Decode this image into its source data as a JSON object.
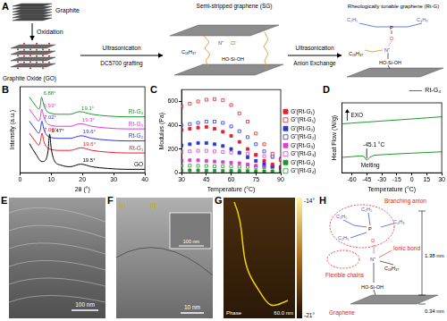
{
  "panel_A": {
    "label": "A",
    "graphite": "Graphite",
    "oxidation": "Oxidation",
    "go": "Graphite Oxide (GO)",
    "step2": [
      "Ultrasonication",
      "DC5700 grafting"
    ],
    "sg": "Semi-stripped graphene (SG)",
    "step3": [
      "Ultrasonication",
      "Anion Exchange"
    ],
    "rtg": "Rheologically tunable graphene (Rt-G)",
    "sg_groups": [
      "N⁺",
      "Cl⁻",
      "C₁₈H₃₇",
      "HO-Si-OH"
    ],
    "rtg_groups": [
      "C₂H₅",
      "C₄H₉",
      "P",
      "O",
      "N⁺",
      "C₁₈H₃₇",
      "HO-Si-OH"
    ]
  },
  "chart_data": [
    {
      "panel": "B",
      "type": "line",
      "x_label": "2θ (°)",
      "y_label": "Intensity (a.u.)",
      "xlim": [
        0,
        40
      ],
      "xticks": [
        0,
        10,
        20,
        30,
        40
      ],
      "ylim": [
        0,
        100
      ],
      "tick_labels": "x",
      "grid": false,
      "series": [
        {
          "name": "GO",
          "color": "#000000",
          "x": [
            3,
            5,
            7,
            8,
            9,
            9.47,
            10,
            11,
            13,
            16,
            19.5,
            23,
            28,
            34,
            40
          ],
          "values": [
            34,
            22,
            13,
            14,
            26,
            45,
            28,
            14,
            9,
            7,
            10,
            7,
            5,
            4,
            4
          ],
          "peaks": [
            {
              "value": 9.47,
              "label": "9.47°"
            },
            {
              "value": 19.5,
              "label": "19.5°"
            }
          ]
        },
        {
          "name": "Rt-G₁",
          "color": "#e8202a",
          "x": [
            3,
            5,
            6,
            6.5,
            7.06,
            7.6,
            8.5,
            10,
            13,
            16,
            19.6,
            23,
            28,
            34,
            40
          ],
          "values": [
            46,
            36,
            32,
            36,
            46,
            37,
            30,
            27,
            26,
            26,
            29,
            26,
            24,
            23,
            23
          ],
          "peaks": [
            {
              "value": 7.06,
              "label": "7.06°"
            },
            {
              "value": 19.6,
              "label": "19.6°"
            }
          ]
        },
        {
          "name": "Rt-G₂",
          "color": "#2b36d9",
          "x": [
            3,
            5,
            6,
            6.5,
            7.02,
            7.6,
            8.5,
            10,
            13,
            16,
            19.6,
            23,
            28,
            34,
            40
          ],
          "values": [
            60,
            50,
            46,
            50,
            60,
            51,
            44,
            41,
            40,
            40,
            43,
            40,
            38,
            37,
            37
          ],
          "peaks": [
            {
              "value": 7.02,
              "label": "7.02°"
            },
            {
              "value": 19.6,
              "label": "19.6°"
            }
          ]
        },
        {
          "name": "Rt-G₃",
          "color": "#e23ad8",
          "x": [
            3,
            5,
            6,
            6.5,
            6.93,
            7.6,
            8.5,
            10,
            13,
            16,
            19.3,
            23,
            28,
            34,
            40
          ],
          "values": [
            74,
            64,
            60,
            64,
            74,
            65,
            58,
            55,
            54,
            54,
            57,
            54,
            52,
            51,
            51
          ],
          "peaks": [
            {
              "value": 6.93,
              "label": "6.93°"
            },
            {
              "value": 19.3,
              "label": "19.3°"
            }
          ]
        },
        {
          "name": "Rt-G₄",
          "color": "#1a9a2a",
          "x": [
            3,
            5,
            6,
            6.5,
            6.88,
            7.6,
            8.5,
            10,
            13,
            16,
            19.1,
            23,
            28,
            34,
            40
          ],
          "values": [
            88,
            78,
            74,
            78,
            88,
            79,
            72,
            69,
            68,
            68,
            71,
            68,
            66,
            65,
            65
          ],
          "peaks": [
            {
              "value": 6.88,
              "label": "6.88°"
            },
            {
              "value": 19.1,
              "label": "19.1°"
            }
          ]
        }
      ]
    },
    {
      "panel": "C",
      "type": "scatter",
      "x_label": "Temperature (°C)",
      "y_label": "Modulus (Pa)",
      "xlim": [
        30,
        90
      ],
      "xticks": [
        30,
        45,
        60,
        75,
        90
      ],
      "ylim": [
        0,
        700
      ],
      "yticks": [
        0,
        200,
        400,
        600
      ],
      "grid": false,
      "legend": "right",
      "x": [
        30,
        35,
        40,
        45,
        50,
        55,
        60,
        65,
        70,
        75,
        80,
        85,
        90
      ],
      "series": [
        {
          "name": "G'(Rt-G₁)",
          "color": "#e8202a",
          "marker": "square",
          "values": [
            360,
            370,
            380,
            385,
            370,
            345,
            310,
            260,
            200,
            150,
            100,
            70,
            50
          ]
        },
        {
          "name": "G''(Rt-G₁)",
          "color": "#e8202a",
          "marker": "open_square",
          "values": [
            560,
            580,
            600,
            615,
            620,
            610,
            570,
            500,
            430,
            330,
            240,
            160,
            110
          ]
        },
        {
          "name": "G'(Rt-G₂)",
          "color": "#2b36d9",
          "marker": "square",
          "values": [
            230,
            240,
            250,
            250,
            240,
            225,
            200,
            170,
            130,
            100,
            75,
            55,
            40
          ]
        },
        {
          "name": "G''(Rt-G₂)",
          "color": "#2b36d9",
          "marker": "open_square",
          "values": [
            400,
            410,
            420,
            430,
            430,
            420,
            390,
            350,
            300,
            240,
            180,
            140,
            110
          ]
        },
        {
          "name": "G'(Rt-G₃)",
          "color": "#e23ad8",
          "marker": "square",
          "values": [
            100,
            105,
            105,
            100,
            95,
            90,
            85,
            80,
            70,
            60,
            55,
            50,
            45
          ]
        },
        {
          "name": "G''(Rt-G₃)",
          "color": "#e23ad8",
          "marker": "open_square",
          "values": [
            175,
            180,
            185,
            185,
            180,
            175,
            170,
            165,
            160,
            150,
            140,
            130,
            120
          ]
        },
        {
          "name": "G'(Rt-G₄)",
          "color": "#1a9a2a",
          "marker": "square",
          "values": [
            20,
            20,
            20,
            18,
            18,
            17,
            16,
            15,
            15,
            14,
            13,
            12,
            12
          ]
        },
        {
          "name": "G''(Rt-G₄)",
          "color": "#1a9a2a",
          "marker": "open_square",
          "values": [
            60,
            60,
            58,
            58,
            55,
            55,
            52,
            50,
            50,
            48,
            46,
            44,
            42
          ]
        }
      ]
    },
    {
      "panel": "D",
      "type": "line",
      "x_label": "Temperature (°C)",
      "y_label": "Heat Flow (W/g)",
      "xlim": [
        -70,
        30
      ],
      "xticks": [
        -60,
        -45,
        -30,
        -15,
        0,
        15,
        30
      ],
      "ylim": [
        0,
        100
      ],
      "tick_labels": "x",
      "grid": false,
      "legend": "upper right",
      "exo": "EXO",
      "transition": {
        "value": -45.1,
        "label": "-45.1 °C",
        "text": "Melting"
      },
      "series": [
        {
          "name": "Rt-G₄",
          "color": "#1a9a2a",
          "x": [
            -70,
            -60,
            -45,
            -30,
            -15,
            0,
            15,
            30,
            null,
            -70,
            -60,
            -52,
            -48,
            -45.1,
            -42,
            -38,
            -30,
            -15,
            0,
            15,
            30
          ],
          "values": [
            70,
            71,
            72.5,
            74,
            75.5,
            77,
            78.5,
            80,
            null,
            22,
            23,
            24,
            23.5,
            18,
            22,
            25,
            25.8,
            27,
            28,
            29,
            30
          ]
        }
      ]
    }
  ],
  "panel_E": {
    "label": "E",
    "scale_bar": "100 nm"
  },
  "panel_F": {
    "label": "F",
    "regions": [
      "(i)",
      "(ii)"
    ],
    "inset_scale_bar": "100 nm",
    "scale_bar": "10 nm"
  },
  "panel_G": {
    "label": "G",
    "channel": "Phase",
    "scale_bar": "60.0 nm",
    "colorbar": {
      "range": [
        -21,
        -14
      ],
      "ticks": [
        {
          "value": -14,
          "label": "-14°"
        },
        {
          "value": -21,
          "label": "-21°"
        }
      ]
    }
  },
  "panel_H": {
    "label": "H",
    "callouts": [
      "Branching anion",
      "Ionic bond",
      "Flexible chains",
      "Graphene"
    ],
    "dimensions": [
      "1.38 nm",
      "0.34 nm"
    ],
    "groups": [
      "C₂H₅",
      "C₂H₅",
      "C₄H₉",
      "C₂H₅",
      "P",
      "O",
      "N⁺",
      "C₁₈H₃₇",
      "HO-Si-OH"
    ]
  }
}
